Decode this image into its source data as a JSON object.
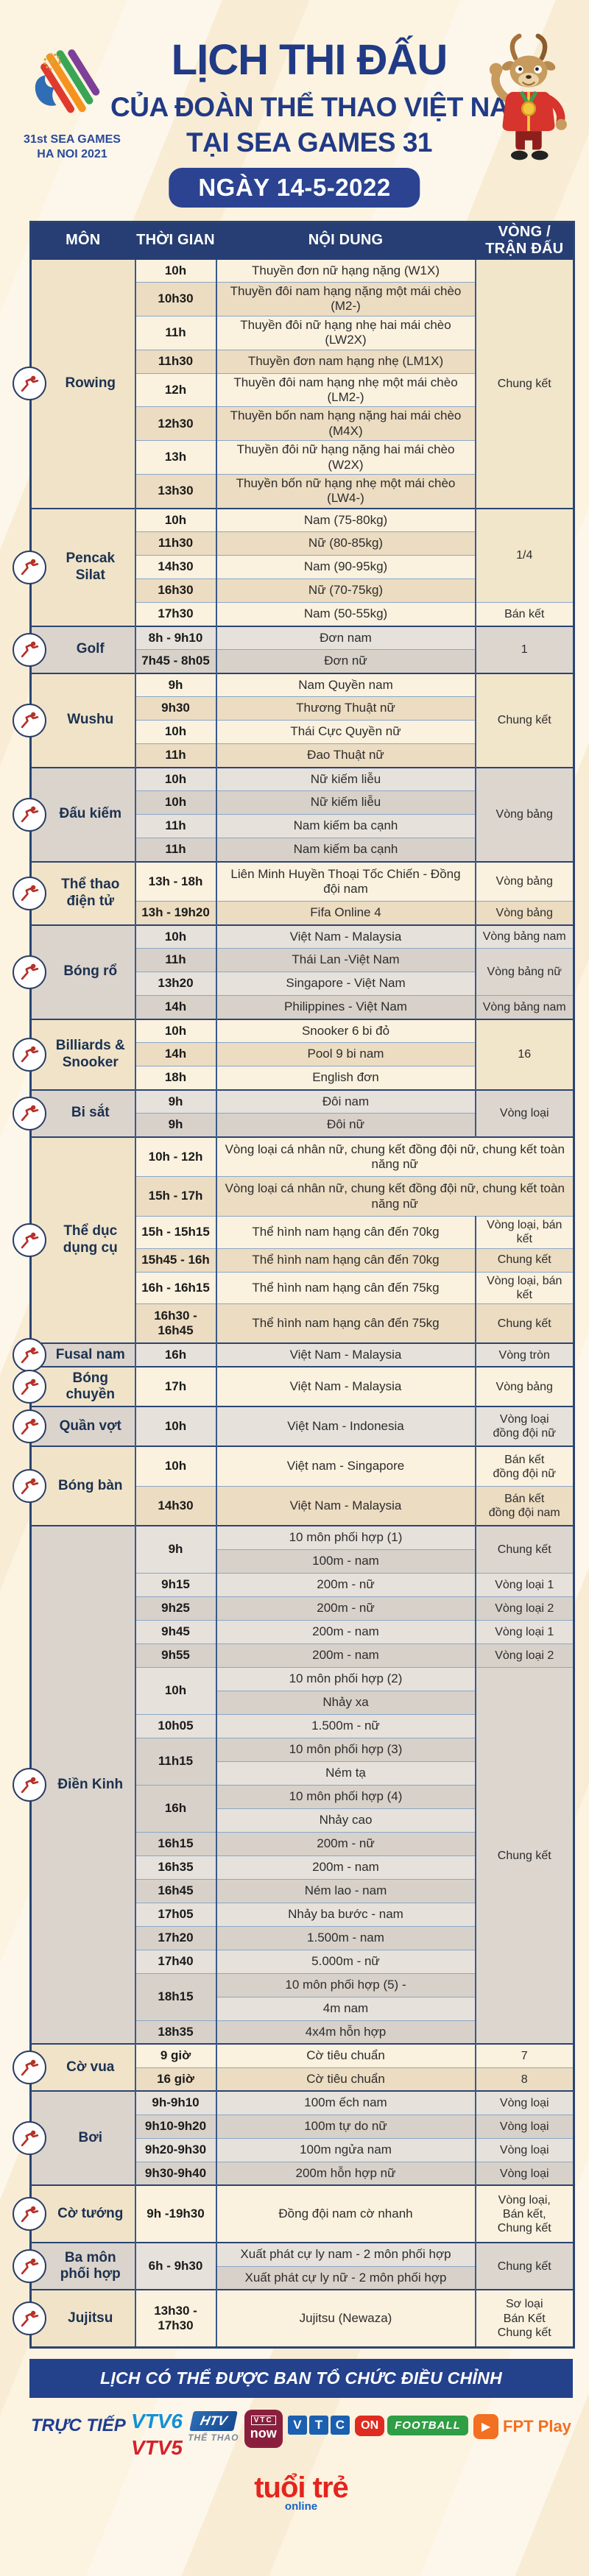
{
  "colors": {
    "navy_header": "#263e73",
    "royal_blue": "#2b4391",
    "banner_blue": "#24418c",
    "icon_red": "#b5302a",
    "cream_bg": "#fcf3e1",
    "tan_row": "#ecdcc1",
    "gray_row": "#d8d1c9",
    "title_blue": "#203a85"
  },
  "header": {
    "logo_line1": "31st SEA GAMES",
    "logo_line2": "HA NOI 2021",
    "title_line1": "LỊCH THI ĐẤU",
    "title_line2": "CỦA ĐOÀN THỂ THAO VIỆT NAM",
    "title_line3": "TẠI SEA GAMES 31",
    "date_badge": "NGÀY 14-5-2022"
  },
  "table": {
    "columns": [
      "MÔN",
      "THỜI GIAN",
      "NỘI DUNG",
      "VÒNG /\nTRẬN ĐẤU"
    ]
  },
  "sections": [
    {
      "sport": "Rowing",
      "icon": "rowing-icon",
      "tone": "tan",
      "lines": [
        {
          "t": "10h",
          "c": "Thuyền đơn nữ hạng nặng (W1X)",
          "r": "Chung kết",
          "rs": 8
        },
        {
          "t": "10h30",
          "c": "Thuyền đôi nam hạng nặng một mái chèo (M2-)"
        },
        {
          "t": "11h",
          "c": "Thuyền đôi nữ hạng nhẹ hai mái chèo (LW2X)"
        },
        {
          "t": "11h30",
          "c": "Thuyền đơn nam hạng nhẹ (LM1X)"
        },
        {
          "t": "12h",
          "c": "Thuyền đôi nam hạng nhẹ một mái chèo (LM2-)"
        },
        {
          "t": "12h30",
          "c": "Thuyền bốn nam hạng nặng hai mái chèo (M4X)"
        },
        {
          "t": "13h",
          "c": "Thuyền đôi nữ hạng nặng hai mái chèo (W2X)"
        },
        {
          "t": "13h30",
          "c": "Thuyền bốn nữ hạng nhẹ một mái chèo (LW4-)"
        }
      ]
    },
    {
      "sport": "Pencak Silat",
      "icon": "pencak-silat-icon",
      "tone": "tan",
      "lines": [
        {
          "t": "10h",
          "c": "Nam (75-80kg)",
          "r": "1/4",
          "rs": 4
        },
        {
          "t": "11h30",
          "c": "Nữ (80-85kg)"
        },
        {
          "t": "14h30",
          "c": "Nam (90-95kg)"
        },
        {
          "t": "16h30",
          "c": "Nữ (70-75kg)"
        },
        {
          "t": "17h30",
          "c": "Nam (50-55kg)",
          "r": "Bán kết"
        }
      ]
    },
    {
      "sport": "Golf",
      "icon": "golf-icon",
      "tone": "gray",
      "lines": [
        {
          "t": "8h - 9h10",
          "c": "Đơn nam",
          "r": "1",
          "rs": 2
        },
        {
          "t": "7h45 - 8h05",
          "c": "Đơn nữ"
        }
      ]
    },
    {
      "sport": "Wushu",
      "icon": "wushu-icon",
      "tone": "tan",
      "lines": [
        {
          "t": "9h",
          "c": "Nam Quyền nam",
          "r": "Chung kết",
          "rs": 4
        },
        {
          "t": "9h30",
          "c": "Thương Thuật nữ"
        },
        {
          "t": "10h",
          "c": "Thái Cực Quyền nữ"
        },
        {
          "t": "11h",
          "c": "Đao Thuật nữ"
        }
      ]
    },
    {
      "sport": "Đấu kiếm",
      "icon": "fencing-icon",
      "tone": "gray",
      "lines": [
        {
          "t": "10h",
          "c": "Nữ kiếm liễu",
          "r": "Vòng bảng",
          "rs": 4
        },
        {
          "t": "10h",
          "c": "Nữ kiếm liễu"
        },
        {
          "t": "11h",
          "c": "Nam kiếm ba cạnh"
        },
        {
          "t": "11h",
          "c": "Nam kiếm ba cạnh"
        }
      ]
    },
    {
      "sport": "Thể thao\nđiện tử",
      "icon": "esports-icon",
      "tone": "tan",
      "lines": [
        {
          "t": "13h - 18h",
          "c": "Liên Minh Huyền Thoại Tốc Chiến - Đồng đội nam",
          "r": "Vòng bảng",
          "sz": "m"
        },
        {
          "t": "13h - 19h20",
          "c": "Fifa Online 4",
          "r": "Vòng bảng"
        }
      ]
    },
    {
      "sport": "Bóng rổ",
      "icon": "basketball-icon",
      "tone": "gray",
      "lines": [
        {
          "t": "10h",
          "c": "Việt Nam - Malaysia",
          "r": "Vòng bảng nam"
        },
        {
          "t": "11h",
          "c": "Thái Lan -Việt Nam",
          "r": "Vòng bảng nữ",
          "rs": 2
        },
        {
          "t": "13h20",
          "c": "Singapore - Việt Nam"
        },
        {
          "t": "14h",
          "c": "Philippines - Việt Nam",
          "r": "Vòng bảng nam"
        }
      ]
    },
    {
      "sport": "Billiards &\nSnooker",
      "icon": "billiards-icon",
      "tone": "tan",
      "lines": [
        {
          "t": "10h",
          "c": "Snooker 6 bi đỏ",
          "r": "16",
          "rs": 3
        },
        {
          "t": "14h",
          "c": "Pool 9 bi nam"
        },
        {
          "t": "18h",
          "c": "English đơn"
        }
      ]
    },
    {
      "sport": "Bi sắt",
      "icon": "petanque-icon",
      "tone": "gray",
      "lines": [
        {
          "t": "9h",
          "c": "Đôi nam",
          "r": "Vòng loại",
          "rs": 2
        },
        {
          "t": "9h",
          "c": "Đôi nữ"
        }
      ]
    },
    {
      "sport": "Thể dục\ndụng cụ",
      "icon": "gymnastics-icon",
      "tone": "tan",
      "lines": [
        {
          "t": "10h - 12h",
          "c": "Vòng loại cá nhân nữ, chung kết đồng đội nữ, chung kết toàn năng nữ",
          "cs": 2,
          "sz": "m"
        },
        {
          "t": "15h - 17h",
          "c": "Vòng loại cá nhân nữ, chung kết đồng đội nữ, chung kết toàn năng nữ",
          "cs": 2,
          "sz": "m"
        },
        {
          "t": "15h - 15h15",
          "c": "Thể hình nam hạng cân đến 70kg",
          "r": "Vòng loại, bán kết"
        },
        {
          "t": "15h45 - 16h",
          "c": "Thể hình nam hạng cân đến 70kg",
          "r": "Chung kết"
        },
        {
          "t": "16h - 16h15",
          "c": "Thể hình nam hạng cân đến 75kg",
          "r": "Vòng loại, bán kết"
        },
        {
          "t": "16h30 - 16h45",
          "c": "Thể hình nam hạng cân đến 75kg",
          "r": "Chung kết",
          "sz": "m"
        }
      ]
    },
    {
      "sport": "Fusal nam",
      "icon": "futsal-icon",
      "tone": "gray",
      "lines": [
        {
          "t": "16h",
          "c": "Việt Nam - Malaysia",
          "r": "Vòng tròn"
        }
      ]
    },
    {
      "sport": "Bóng\nchuyền",
      "icon": "volleyball-icon",
      "tone": "tan",
      "lines": [
        {
          "t": "17h",
          "c": "Việt Nam - Malaysia",
          "r": "Vòng bảng",
          "sz": "m"
        }
      ]
    },
    {
      "sport": "Quần vợt",
      "icon": "tennis-icon",
      "tone": "gray",
      "lines": [
        {
          "t": "10h",
          "c": "Việt Nam - Indonesia",
          "r": "Vòng loại\nđồng đội nữ",
          "sz": "m"
        }
      ]
    },
    {
      "sport": "Bóng bàn",
      "icon": "table-tennis-icon",
      "tone": "tan",
      "lines": [
        {
          "t": "10h",
          "c": "Việt nam - Singapore",
          "r": "Bán kết\nđồng đội nữ",
          "sz": "m"
        },
        {
          "t": "14h30",
          "c": "Việt Nam - Malaysia",
          "r": "Bán kết\nđồng đội nam",
          "sz": "m"
        }
      ]
    },
    {
      "sport": "Điền Kinh",
      "icon": "athletics-icon",
      "tone": "gray",
      "lines": [
        {
          "t": "9h",
          "ts": 2,
          "c": "10 môn phối hợp (1)",
          "r": "Chung kết",
          "rs": 2
        },
        {
          "c": "100m  - nam"
        },
        {
          "t": "9h15",
          "c": "200m - nữ",
          "r": "Vòng loại 1"
        },
        {
          "t": "9h25",
          "c": "200m - nữ",
          "r": "Vòng loại 2"
        },
        {
          "t": "9h45",
          "c": "200m - nam",
          "r": "Vòng loại 1"
        },
        {
          "t": "9h55",
          "c": "200m - nam",
          "r": "Vòng loại 2"
        },
        {
          "t": "10h",
          "ts": 2,
          "c": "10 môn phối hợp (2)",
          "r": "Chung kết",
          "rs": 16
        },
        {
          "c": "Nhảy xa"
        },
        {
          "t": "10h05",
          "c": "1.500m - nữ"
        },
        {
          "t": "11h15",
          "ts": 2,
          "c": "10 môn phối hợp (3)"
        },
        {
          "c": "Ném tạ"
        },
        {
          "t": "16h",
          "ts": 2,
          "c": "10 môn phối hợp (4)"
        },
        {
          "c": "Nhảy cao"
        },
        {
          "t": "16h15",
          "c": "200m - nữ"
        },
        {
          "t": "16h35",
          "c": "200m - nam"
        },
        {
          "t": "16h45",
          "c": "Ném lao - nam"
        },
        {
          "t": "17h05",
          "c": "Nhảy ba bước - nam"
        },
        {
          "t": "17h20",
          "c": "1.500m - nam"
        },
        {
          "t": "17h40",
          "c": "5.000m - nữ"
        },
        {
          "t": "18h15",
          "ts": 2,
          "c": "10 môn phối hợp (5) -"
        },
        {
          "c": "4m nam"
        },
        {
          "t": "18h35",
          "c": "4x4m hỗn hợp"
        }
      ]
    },
    {
      "sport": "Cờ vua",
      "icon": "chess-icon",
      "tone": "tan",
      "lines": [
        {
          "t": "9 giờ",
          "c": "Cờ tiêu chuẩn",
          "r": "7"
        },
        {
          "t": "16 giờ",
          "c": "Cờ tiêu chuẩn",
          "r": "8"
        }
      ]
    },
    {
      "sport": "Bơi",
      "icon": "swimming-icon",
      "tone": "gray",
      "lines": [
        {
          "t": "9h-9h10",
          "c": "100m ếch nam",
          "r": "Vòng loại"
        },
        {
          "t": "9h10-9h20",
          "c": "100m tự do nữ",
          "r": "Vòng loại"
        },
        {
          "t": "9h20-9h30",
          "c": "100m ngửa nam",
          "r": "Vòng loại"
        },
        {
          "t": "9h30-9h40",
          "c": "200m hỗn hợp nữ",
          "r": "Vòng loại"
        }
      ]
    },
    {
      "sport": "Cờ tướng",
      "icon": "xiangqi-icon",
      "tone": "tan",
      "lines": [
        {
          "t": "9h -19h30",
          "c": "Đồng đội nam cờ nhanh",
          "r": "Vòng loại,\nBán kết,\nChung kết",
          "sz": "l"
        }
      ]
    },
    {
      "sport": "Ba môn\nphối hợp",
      "icon": "triathlon-icon",
      "tone": "gray",
      "lines": [
        {
          "t": "6h - 9h30",
          "ts": 2,
          "c": "Xuất phát cự ly nam - 2 môn phối hợp",
          "r": "Chung kết",
          "rs": 2
        },
        {
          "c": "Xuất phát cự ly nữ - 2 môn phối hợp"
        }
      ]
    },
    {
      "sport": "Jujitsu",
      "icon": "jujitsu-icon",
      "tone": "tan",
      "lines": [
        {
          "t": "13h30 - 17h30",
          "c": "Jujitsu (Newaza)",
          "r": "Sơ loại\nBán Kết\nChung kết",
          "sz": "l"
        }
      ]
    }
  ],
  "banner": {
    "text": "LỊCH CÓ THỂ ĐƯỢC BAN TỔ CHỨC ĐIỀU CHỈNH"
  },
  "footer": {
    "live_label": "TRỰC TIẾP",
    "vtv6": "VTV6",
    "vtv5": "VTV5",
    "htv_top": "HTV",
    "htv_bottom": "THỂ THAO",
    "vtcnow_top": "VTC",
    "vtcnow_bottom": "now",
    "vtc_letters": [
      "V",
      "T",
      "C"
    ],
    "on_label": "ON",
    "football_label": "FOOTBALL",
    "play_glyph": "▶",
    "fpt_label": "FPT Play",
    "tuoitre": "tuổi trẻ",
    "online": "online"
  }
}
